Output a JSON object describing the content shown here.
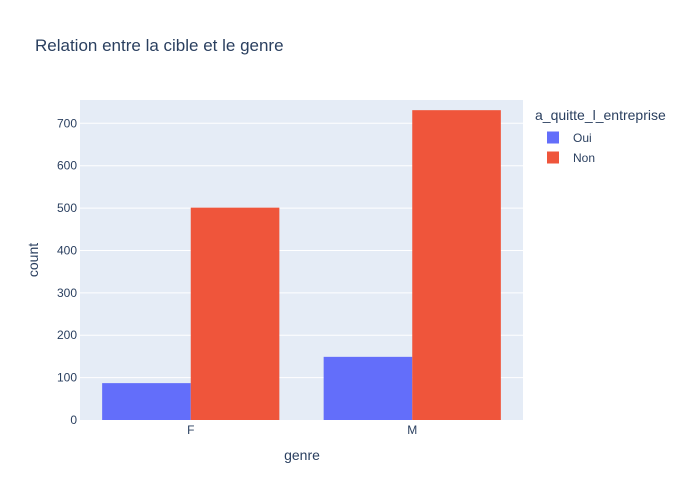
{
  "chart_data": {
    "type": "bar",
    "title": "Relation entre la cible et le genre",
    "xlabel": "genre",
    "ylabel": "count",
    "categories": [
      "F",
      "M"
    ],
    "series": [
      {
        "name": "Oui",
        "values": [
          87,
          149
        ],
        "color": "#636efa"
      },
      {
        "name": "Non",
        "values": [
          501,
          731
        ],
        "color": "#ef553b"
      }
    ],
    "ylim": [
      0,
      755
    ],
    "yticks": [
      0,
      100,
      200,
      300,
      400,
      500,
      600,
      700
    ],
    "grid": true,
    "legend": {
      "title": "a_quitte_l_entreprise",
      "position": "top-right"
    },
    "plot_background": "#e5ecf6"
  }
}
